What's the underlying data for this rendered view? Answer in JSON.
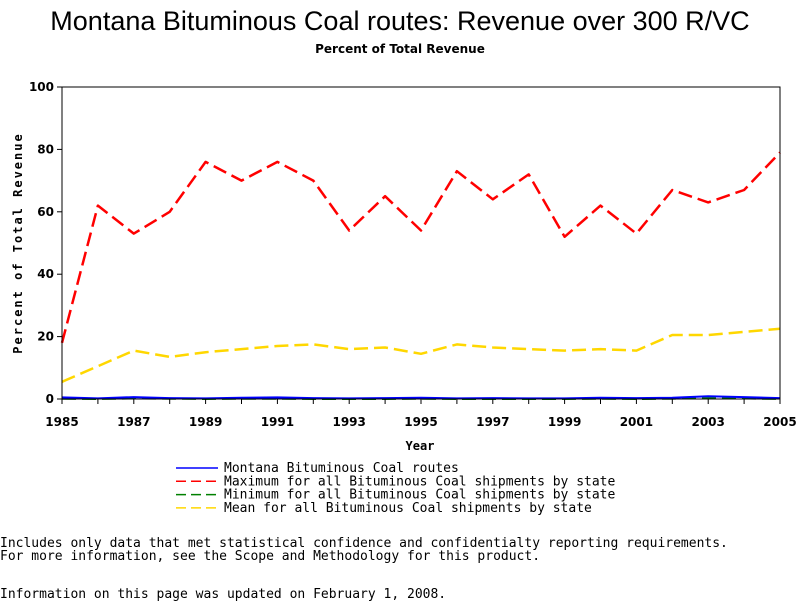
{
  "chart_data": {
    "type": "line",
    "title": "Montana Bituminous Coal routes: Revenue over 300 R/VC",
    "subtitle": "Percent of Total Revenue",
    "xlabel": "Year",
    "ylabel": "Percent of Total Revenue",
    "ylim": [
      0,
      100
    ],
    "xlim": [
      1985,
      2005
    ],
    "yticks": [
      "0",
      "20",
      "40",
      "60",
      "80",
      "100"
    ],
    "xticks": [
      "1985",
      "1987",
      "1989",
      "1991",
      "1993",
      "1995",
      "1997",
      "1999",
      "2001",
      "2003",
      "2005"
    ],
    "x": [
      1985,
      1986,
      1987,
      1988,
      1989,
      1990,
      1991,
      1992,
      1993,
      1994,
      1995,
      1996,
      1997,
      1998,
      1999,
      2000,
      2001,
      2002,
      2003,
      2004,
      2005
    ],
    "series": [
      {
        "name": "Montana Bituminous Coal routes",
        "color": "#0000ff",
        "dash": "solid",
        "values": [
          0.5,
          0.2,
          0.6,
          0.3,
          0.2,
          0.4,
          0.5,
          0.3,
          0.2,
          0.3,
          0.4,
          0.2,
          0.3,
          0.2,
          0.2,
          0.4,
          0.3,
          0.4,
          0.9,
          0.6,
          0.3
        ]
      },
      {
        "name": "Maximum for all Bituminous Coal shipments by state",
        "color": "#ff0000",
        "dash": "dashed",
        "values": [
          18,
          62,
          53,
          60,
          76,
          70,
          76,
          70,
          54,
          65,
          54,
          73,
          64,
          72,
          52,
          62,
          53,
          67,
          63,
          67,
          79
        ]
      },
      {
        "name": "Minimum for all Bituminous Coal shipments by state",
        "color": "#008000",
        "dash": "dashed",
        "values": [
          0.1,
          0.0,
          0.2,
          0.1,
          0.0,
          0.1,
          0.1,
          0.0,
          0.0,
          0.0,
          0.1,
          0.0,
          0.0,
          0.0,
          0.0,
          0.1,
          0.0,
          0.1,
          0.3,
          0.2,
          0.0
        ]
      },
      {
        "name": "Mean for all Bituminous Coal shipments by state",
        "color": "#ffd700",
        "dash": "dashed",
        "values": [
          5.5,
          10.5,
          15.5,
          13.5,
          15,
          16,
          17,
          17.5,
          16,
          16.5,
          14.5,
          17.5,
          16.5,
          16,
          15.5,
          16,
          15.5,
          20.5,
          20.5,
          21.5,
          22.5
        ]
      }
    ]
  },
  "notes": {
    "line1": "Includes only data that met statistical confidence and confidentialty reporting requirements.",
    "line2": "For more information, see the Scope and Methodology for this product.",
    "updated": "Information on this page was updated on February 1, 2008."
  }
}
